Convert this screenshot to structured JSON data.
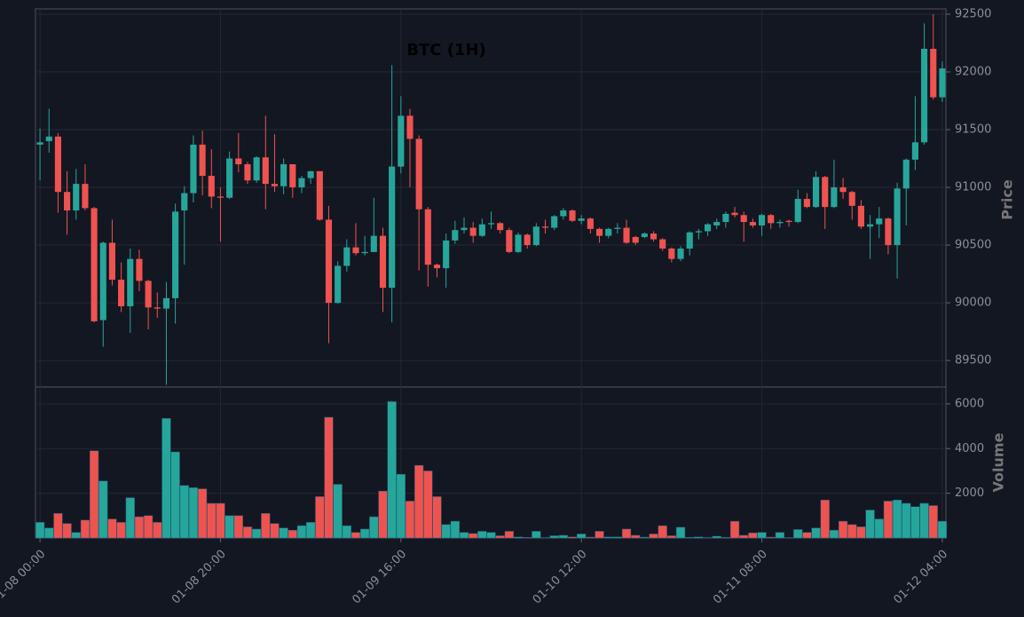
{
  "chart_data": {
    "type": "candlestick",
    "title": "BTC (1H)",
    "open": [
      91370,
      91400,
      91440,
      90960,
      90800,
      91030,
      90820,
      89850,
      90520,
      90200,
      89970,
      90380,
      90190,
      89960,
      89950,
      90040,
      90800,
      90950,
      91370,
      91100,
      90920,
      90910,
      91250,
      91200,
      91060,
      91260,
      91030,
      91010,
      91200,
      91000,
      91080,
      91140,
      90720,
      90000,
      90320,
      90480,
      90430,
      90440,
      90580,
      90130,
      91180,
      91620,
      91420,
      90810,
      90330,
      90300,
      90540,
      90630,
      90650,
      90580,
      90680,
      90690,
      90630,
      90440,
      90590,
      90500,
      90660,
      90650,
      90750,
      90800,
      90710,
      90730,
      90640,
      90580,
      90640,
      90650,
      90570,
      90570,
      90600,
      90550,
      90470,
      90380,
      90470,
      90610,
      90620,
      90670,
      90700,
      90780,
      90760,
      90700,
      90670,
      90760,
      90690,
      90710,
      90700,
      90900,
      90830,
      91090,
      90830,
      91000,
      90960,
      90840,
      90660,
      90680,
      90730,
      90500,
      90990,
      91240,
      91390,
      92200,
      91780
    ],
    "high": [
      91510,
      91680,
      91470,
      91140,
      91160,
      91200,
      90830,
      90530,
      90720,
      90350,
      90470,
      90460,
      90200,
      90090,
      90180,
      90860,
      91010,
      91450,
      91490,
      91330,
      91000,
      91310,
      91470,
      91220,
      91270,
      91620,
      91460,
      91250,
      91200,
      91100,
      91140,
      91140,
      90840,
      90360,
      90550,
      90690,
      90580,
      90910,
      90650,
      92060,
      91790,
      91680,
      91450,
      90830,
      90340,
      90600,
      90710,
      90740,
      90700,
      90730,
      90790,
      90700,
      90650,
      90610,
      90600,
      90690,
      90720,
      90760,
      90820,
      90810,
      90760,
      90740,
      90650,
      90650,
      90690,
      90720,
      90580,
      90610,
      90620,
      90560,
      90480,
      90490,
      90620,
      90640,
      90690,
      90730,
      90790,
      90830,
      90790,
      90730,
      90770,
      90770,
      90720,
      90720,
      90980,
      90950,
      91140,
      91100,
      91240,
      91080,
      90970,
      90890,
      90760,
      90830,
      90740,
      91040,
      91250,
      91790,
      92420,
      92500,
      92090
    ],
    "low": [
      91060,
      91300,
      90780,
      90590,
      90720,
      90800,
      89830,
      89620,
      90150,
      89920,
      89740,
      90100,
      89770,
      89870,
      89290,
      89820,
      90330,
      90870,
      90930,
      90820,
      90530,
      90900,
      91130,
      91030,
      91040,
      90810,
      90960,
      90940,
      90910,
      90950,
      91030,
      90710,
      89650,
      89990,
      90270,
      90410,
      90410,
      90440,
      89920,
      89830,
      91120,
      91000,
      90280,
      90140,
      90220,
      90130,
      90510,
      90600,
      90520,
      90570,
      90640,
      90600,
      90430,
      90430,
      90470,
      90490,
      90600,
      90630,
      90720,
      90700,
      90680,
      90600,
      90520,
      90560,
      90600,
      90510,
      90500,
      90560,
      90530,
      90450,
      90350,
      90360,
      90410,
      90550,
      90580,
      90640,
      90650,
      90740,
      90530,
      90650,
      90580,
      90640,
      90650,
      90660,
      90690,
      90820,
      90820,
      90640,
      90820,
      90900,
      90720,
      90640,
      90380,
      90560,
      90420,
      90210,
      90670,
      91150,
      91370,
      91760,
      91740
    ],
    "close": [
      91390,
      91440,
      90960,
      90800,
      91030,
      90820,
      89840,
      90520,
      90200,
      89970,
      90380,
      90190,
      89960,
      89950,
      90040,
      90790,
      90950,
      91370,
      91100,
      90920,
      90910,
      91250,
      91200,
      91060,
      91260,
      91030,
      91010,
      91200,
      91000,
      91080,
      91140,
      90720,
      90000,
      90320,
      90480,
      90430,
      90440,
      90580,
      90130,
      91180,
      91620,
      91420,
      90810,
      90330,
      90300,
      90540,
      90630,
      90650,
      90580,
      90680,
      90690,
      90630,
      90440,
      90590,
      90500,
      90660,
      90650,
      90750,
      90800,
      90710,
      90730,
      90640,
      90580,
      90640,
      90650,
      90520,
      90520,
      90600,
      90550,
      90470,
      90380,
      90470,
      90610,
      90620,
      90680,
      90700,
      90770,
      90760,
      90700,
      90670,
      90760,
      90690,
      90700,
      90700,
      90900,
      90830,
      91090,
      90830,
      91000,
      90960,
      90840,
      90660,
      90680,
      90730,
      90500,
      90990,
      91240,
      91390,
      92200,
      91780,
      92030
    ],
    "volume": [
      700,
      450,
      1100,
      650,
      250,
      800,
      3900,
      2550,
      850,
      700,
      1800,
      950,
      1000,
      700,
      5350,
      3850,
      2350,
      2250,
      2200,
      1550,
      1550,
      1000,
      1000,
      500,
      400,
      1100,
      650,
      450,
      350,
      550,
      700,
      1850,
      5400,
      2400,
      550,
      250,
      400,
      950,
      2100,
      6100,
      2850,
      1650,
      3250,
      3000,
      1850,
      600,
      750,
      250,
      200,
      300,
      250,
      100,
      300,
      50,
      30,
      300,
      20,
      100,
      120,
      50,
      180,
      40,
      300,
      50,
      50,
      400,
      120,
      40,
      180,
      550,
      100,
      480,
      30,
      50,
      20,
      80,
      30,
      750,
      120,
      230,
      250,
      40,
      250,
      20,
      380,
      250,
      450,
      1700,
      350,
      750,
      600,
      500,
      1250,
      850,
      1650,
      1700,
      1550,
      1400,
      1550,
      1450,
      750
    ],
    "up_color": "#26a69a",
    "down_color": "#ef5350",
    "ylabel": "Price",
    "ylim": [
      89270,
      92546
    ],
    "yticks": [
      89500,
      90000,
      90500,
      91000,
      91500,
      92000,
      92500
    ],
    "volume_label": "Volume",
    "volume_ylim": [
      0,
      6750
    ],
    "volume_yticks": [
      2000,
      4000,
      6000
    ],
    "xlim": [
      -0.5,
      100.4
    ],
    "xticks": [
      {
        "value": 0,
        "label": "01-08 00:00"
      },
      {
        "value": 20,
        "label": "01-08 20:00"
      },
      {
        "value": 40,
        "label": "01-09 16:00"
      },
      {
        "value": 60,
        "label": "01-10 12:00"
      },
      {
        "value": 80,
        "label": "01-11 08:00"
      },
      {
        "value": 100,
        "label": "01-12 04:00"
      }
    ],
    "grid": true
  }
}
